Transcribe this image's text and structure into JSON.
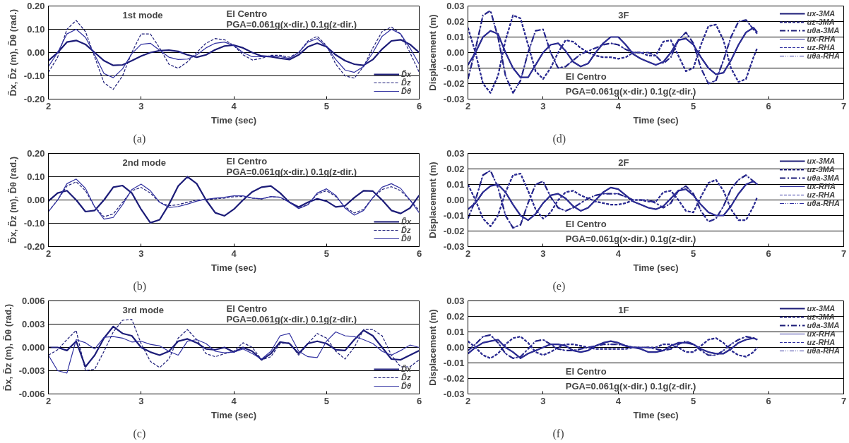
{
  "chart_data": [
    {
      "type": "line",
      "title": "1st mode",
      "xlabel": "Time (sec)",
      "ylabel": "D̃x, D̃z (m), D̃θ (rad.)",
      "grid": "y",
      "legend": "bottom right",
      "annotations": [
        "El Centro",
        "PGA=0.061g(x-dir.) 0.1g(z-dir.)",
        "(a)"
      ],
      "xlim": [
        2,
        6
      ],
      "xticks": [
        2,
        3,
        4,
        5,
        6
      ],
      "ylim": [
        -0.2,
        0.2
      ],
      "yticks": [
        {
          "value": -0.2,
          "label": "-0.20"
        },
        {
          "value": -0.1,
          "label": "-0.10"
        },
        {
          "value": 0,
          "label": "0.00"
        },
        {
          "value": 0.1,
          "label": "0.10"
        },
        {
          "value": 0.2,
          "label": "0.20"
        }
      ],
      "x": [
        2.0,
        2.1,
        2.2,
        2.3,
        2.4,
        2.5,
        2.6,
        2.7,
        2.8,
        2.9,
        3.0,
        3.1,
        3.2,
        3.3,
        3.4,
        3.5,
        3.6,
        3.7,
        3.8,
        3.9,
        4.0,
        4.1,
        4.2,
        4.3,
        4.4,
        4.5,
        4.6,
        4.7,
        4.8,
        4.9,
        5.0,
        5.1,
        5.2,
        5.3,
        5.4,
        5.5,
        5.6,
        5.7,
        5.8,
        5.9,
        6.0
      ],
      "series": [
        {
          "name": "D̃x",
          "color": "#1c1c78",
          "line_style": "solid",
          "values": [
            -0.035,
            0.0,
            0.045,
            0.052,
            0.035,
            0.0,
            -0.035,
            -0.055,
            -0.053,
            -0.035,
            -0.015,
            0.0,
            0.008,
            0.01,
            0.005,
            -0.01,
            -0.02,
            -0.01,
            0.012,
            0.028,
            0.032,
            0.02,
            0.0,
            -0.015,
            -0.018,
            -0.025,
            -0.03,
            -0.01,
            0.025,
            0.04,
            0.025,
            -0.01,
            -0.035,
            -0.05,
            -0.055,
            -0.03,
            0.015,
            0.05,
            0.055,
            0.035,
            0.0
          ]
        },
        {
          "name": "D̃z",
          "color": "#1c1c78",
          "line_style": "dashed",
          "values": [
            -0.085,
            -0.02,
            0.1,
            0.138,
            0.09,
            -0.02,
            -0.13,
            -0.158,
            -0.1,
            0.0,
            0.08,
            0.08,
            0.02,
            -0.05,
            -0.068,
            -0.04,
            0.0,
            0.04,
            0.06,
            0.055,
            0.03,
            -0.01,
            -0.032,
            -0.025,
            -0.012,
            -0.012,
            -0.02,
            0.0,
            0.05,
            0.07,
            0.03,
            -0.05,
            -0.1,
            -0.11,
            -0.06,
            0.02,
            0.09,
            0.11,
            0.08,
            0.0,
            -0.085
          ]
        },
        {
          "name": "D̃θ",
          "color": "#3030a0",
          "line_style": "solid",
          "values": [
            -0.06,
            0.0,
            0.08,
            0.1,
            0.065,
            -0.01,
            -0.09,
            -0.108,
            -0.07,
            -0.005,
            0.035,
            0.04,
            0.01,
            -0.02,
            -0.03,
            -0.028,
            -0.01,
            0.02,
            0.04,
            0.045,
            0.03,
            0.0,
            -0.018,
            -0.018,
            -0.015,
            -0.018,
            -0.025,
            0.0,
            0.045,
            0.06,
            0.025,
            -0.03,
            -0.075,
            -0.085,
            -0.06,
            0.0,
            0.07,
            0.1,
            0.08,
            0.02,
            -0.05
          ]
        }
      ]
    },
    {
      "type": "line",
      "title": "3F",
      "xlabel": "Time (sec)",
      "ylabel": "Displacement (m)",
      "grid": "y",
      "legend": "top right",
      "annotations": [
        "El Centro",
        "PGA=0.061g(x-dir.) 0.1g(z-dir.)",
        "(d)"
      ],
      "xlim": [
        2,
        7
      ],
      "xticks": [
        2,
        3,
        4,
        5,
        6,
        7
      ],
      "ylim": [
        -0.03,
        0.03
      ],
      "yticks": [
        {
          "value": -0.03,
          "label": "-0.03"
        },
        {
          "value": -0.02,
          "label": "-0.02"
        },
        {
          "value": -0.01,
          "label": "-0.01"
        },
        {
          "value": 0,
          "label": "0.00"
        },
        {
          "value": 0.01,
          "label": "0.01"
        },
        {
          "value": 0.02,
          "label": "0.02"
        },
        {
          "value": 0.03,
          "label": "0.03"
        }
      ],
      "x": [
        2.0,
        2.1,
        2.2,
        2.3,
        2.4,
        2.5,
        2.6,
        2.7,
        2.8,
        2.9,
        3.0,
        3.1,
        3.2,
        3.3,
        3.4,
        3.5,
        3.6,
        3.7,
        3.8,
        3.9,
        4.0,
        4.1,
        4.2,
        4.3,
        4.4,
        4.5,
        4.6,
        4.7,
        4.8,
        4.9,
        5.0,
        5.1,
        5.2,
        5.3,
        5.4,
        5.5,
        5.6,
        5.7,
        5.8,
        5.85
      ],
      "series": [
        {
          "name": "ux-3MA",
          "color": "#1c1c78",
          "line_style": "solid",
          "values": [
            -0.008,
            0.0,
            0.01,
            0.014,
            0.012,
            0.0,
            -0.01,
            -0.016,
            -0.016,
            -0.008,
            0.0,
            0.005,
            0.006,
            0.001,
            -0.006,
            -0.009,
            -0.007,
            0.0,
            0.006,
            0.01,
            0.01,
            0.005,
            -0.001,
            -0.004,
            -0.006,
            -0.008,
            -0.006,
            0.0,
            0.008,
            0.009,
            0.005,
            -0.003,
            -0.01,
            -0.014,
            -0.013,
            -0.005,
            0.005,
            0.013,
            0.016,
            0.013
          ]
        },
        {
          "name": "uz-3MA",
          "color": "#1c1c78",
          "line_style": "dashed",
          "values": [
            0.016,
            0.0,
            -0.02,
            -0.026,
            -0.015,
            0.008,
            0.024,
            0.022,
            0.005,
            -0.012,
            -0.017,
            -0.01,
            0.0,
            0.008,
            0.007,
            0.003,
            0.0,
            -0.002,
            -0.003,
            -0.003,
            -0.004,
            -0.003,
            0.0,
            0.0,
            -0.002,
            -0.002,
            0.007,
            0.008,
            -0.002,
            -0.012,
            -0.01,
            0.005,
            0.017,
            0.018,
            0.008,
            -0.01,
            -0.019,
            -0.017,
            -0.003,
            0.003
          ]
        },
        {
          "name": "uθa-3MA",
          "color": "#1c1c78",
          "line_style": "dashdot",
          "values": [
            -0.017,
            0.002,
            0.024,
            0.027,
            0.01,
            -0.015,
            -0.026,
            -0.018,
            0.0,
            0.014,
            0.015,
            0.0,
            -0.01,
            -0.009,
            -0.005,
            -0.001,
            0.001,
            0.003,
            0.005,
            0.006,
            0.005,
            0.002,
            0.0,
            0.0,
            0.0,
            -0.002,
            -0.007,
            -0.003,
            0.008,
            0.013,
            0.006,
            -0.01,
            -0.02,
            -0.018,
            -0.005,
            0.01,
            0.02,
            0.021,
            0.015,
            0.012
          ]
        },
        {
          "name": "ux-RHA",
          "color": "#3030a0",
          "line_style": "solid",
          "values": [
            -0.008,
            0.0,
            0.01,
            0.014,
            0.012,
            0.0,
            -0.01,
            -0.016,
            -0.016,
            -0.008,
            0.0,
            0.005,
            0.006,
            0.001,
            -0.006,
            -0.009,
            -0.007,
            0.0,
            0.006,
            0.01,
            0.01,
            0.005,
            -0.001,
            -0.004,
            -0.006,
            -0.008,
            -0.006,
            0.0,
            0.008,
            0.009,
            0.005,
            -0.003,
            -0.01,
            -0.014,
            -0.013,
            -0.005,
            0.005,
            0.013,
            0.016,
            0.013
          ]
        },
        {
          "name": "uz-RHA",
          "color": "#3030a0",
          "line_style": "dashed",
          "values": [
            0.016,
            0.0,
            -0.02,
            -0.026,
            -0.015,
            0.008,
            0.024,
            0.022,
            0.005,
            -0.012,
            -0.017,
            -0.01,
            0.0,
            0.008,
            0.007,
            0.003,
            0.0,
            -0.002,
            -0.003,
            -0.003,
            -0.004,
            -0.003,
            0.0,
            0.0,
            -0.002,
            -0.002,
            0.007,
            0.008,
            -0.002,
            -0.012,
            -0.01,
            0.005,
            0.017,
            0.018,
            0.008,
            -0.01,
            -0.019,
            -0.017,
            -0.003,
            0.003
          ]
        },
        {
          "name": "uθa-RHA",
          "color": "#3030a0",
          "line_style": "dotted",
          "values": [
            -0.017,
            0.002,
            0.024,
            0.027,
            0.01,
            -0.015,
            -0.026,
            -0.018,
            0.0,
            0.014,
            0.015,
            0.0,
            -0.01,
            -0.009,
            -0.005,
            -0.001,
            0.001,
            0.003,
            0.005,
            0.006,
            0.005,
            0.002,
            0.0,
            0.0,
            0.0,
            -0.002,
            -0.007,
            -0.003,
            0.008,
            0.013,
            0.006,
            -0.01,
            -0.02,
            -0.018,
            -0.005,
            0.01,
            0.02,
            0.021,
            0.015,
            0.012
          ]
        }
      ]
    },
    {
      "type": "line",
      "title": "2nd mode",
      "xlabel": "Time (sec)",
      "ylabel": "D̃x, D̃z (m), D̃θ (rad.)",
      "grid": "y",
      "legend": "bottom right",
      "annotations": [
        "El Centro",
        "PGA=0.061g(x-dir.) 0.1g(z-dir.)",
        "(b)"
      ],
      "xlim": [
        2,
        6
      ],
      "xticks": [
        2,
        3,
        4,
        5,
        6
      ],
      "ylim": [
        -0.2,
        0.2
      ],
      "yticks": [
        {
          "value": -0.2,
          "label": "-0.20"
        },
        {
          "value": -0.1,
          "label": "-0.10"
        },
        {
          "value": 0,
          "label": "0.00"
        },
        {
          "value": 0.1,
          "label": "0.10"
        },
        {
          "value": 0.2,
          "label": "0.20"
        }
      ],
      "x": [
        2.0,
        2.1,
        2.2,
        2.3,
        2.4,
        2.5,
        2.6,
        2.7,
        2.8,
        2.9,
        3.0,
        3.1,
        3.2,
        3.3,
        3.4,
        3.5,
        3.6,
        3.7,
        3.8,
        3.9,
        4.0,
        4.1,
        4.2,
        4.3,
        4.4,
        4.5,
        4.6,
        4.7,
        4.8,
        4.9,
        5.0,
        5.1,
        5.2,
        5.3,
        5.4,
        5.5,
        5.6,
        5.7,
        5.8,
        5.9,
        6.0
      ],
      "series": [
        {
          "name": "D̃x",
          "color": "#1c1c78",
          "line_style": "solid",
          "values": [
            -0.005,
            0.03,
            0.04,
            0.0,
            -0.05,
            -0.045,
            0.0,
            0.055,
            0.062,
            0.03,
            -0.04,
            -0.098,
            -0.085,
            -0.02,
            0.06,
            0.1,
            0.07,
            0.0,
            -0.055,
            -0.068,
            -0.04,
            0.0,
            0.035,
            0.055,
            0.06,
            0.03,
            -0.01,
            -0.03,
            -0.01,
            0.005,
            -0.005,
            -0.03,
            -0.025,
            0.01,
            0.04,
            0.038,
            0.0,
            -0.045,
            -0.058,
            -0.035,
            0.02
          ]
        },
        {
          "name": "D̃z",
          "color": "#1c1c78",
          "line_style": "dashed",
          "values": [
            -0.05,
            0.0,
            0.06,
            0.078,
            0.04,
            -0.03,
            -0.072,
            -0.06,
            -0.01,
            0.04,
            0.054,
            0.03,
            -0.01,
            -0.025,
            -0.02,
            -0.01,
            0.0,
            0.002,
            0.005,
            0.008,
            0.014,
            0.015,
            0.008,
            0.005,
            0.014,
            0.012,
            -0.01,
            -0.035,
            -0.02,
            0.025,
            0.04,
            0.015,
            -0.03,
            -0.056,
            -0.04,
            0.01,
            0.045,
            0.057,
            0.04,
            0.0,
            -0.045
          ]
        },
        {
          "name": "D̃θ",
          "color": "#3030a0",
          "line_style": "solid",
          "values": [
            -0.05,
            0.0,
            0.07,
            0.09,
            0.05,
            -0.03,
            -0.082,
            -0.075,
            -0.02,
            0.045,
            0.068,
            0.04,
            -0.01,
            -0.032,
            -0.028,
            -0.018,
            -0.005,
            0.003,
            0.008,
            0.012,
            0.018,
            0.018,
            0.008,
            0.005,
            0.015,
            0.012,
            -0.01,
            -0.037,
            -0.02,
            0.03,
            0.048,
            0.02,
            -0.035,
            -0.065,
            -0.045,
            0.01,
            0.055,
            0.07,
            0.05,
            0.0,
            -0.055
          ]
        }
      ]
    },
    {
      "type": "line",
      "title": "2F",
      "xlabel": "Time (sec)",
      "ylabel": "Displacement (m)",
      "grid": "y",
      "legend": "top right",
      "annotations": [
        "El Centro",
        "PGA=0.061g(x-dir.) 0.1g(z-dir.)",
        "(e)"
      ],
      "xlim": [
        2,
        7
      ],
      "xticks": [
        2,
        3,
        4,
        5,
        6,
        7
      ],
      "ylim": [
        -0.03,
        0.03
      ],
      "yticks": [
        {
          "value": -0.03,
          "label": "-0.03"
        },
        {
          "value": -0.02,
          "label": "-0.02"
        },
        {
          "value": -0.01,
          "label": "-0.01"
        },
        {
          "value": 0,
          "label": "0.00"
        },
        {
          "value": 0.01,
          "label": "0.01"
        },
        {
          "value": 0.02,
          "label": "0.02"
        },
        {
          "value": 0.03,
          "label": "0.03"
        }
      ],
      "x": [
        2.0,
        2.1,
        2.2,
        2.3,
        2.4,
        2.5,
        2.6,
        2.7,
        2.8,
        2.9,
        3.0,
        3.1,
        3.2,
        3.3,
        3.4,
        3.5,
        3.6,
        3.7,
        3.8,
        3.9,
        4.0,
        4.1,
        4.2,
        4.3,
        4.4,
        4.5,
        4.6,
        4.7,
        4.8,
        4.9,
        5.0,
        5.1,
        5.2,
        5.3,
        5.4,
        5.5,
        5.6,
        5.7,
        5.8,
        5.85
      ],
      "series": [
        {
          "name": "ux-3MA",
          "color": "#1c1c78",
          "line_style": "solid",
          "values": [
            -0.006,
            -0.002,
            0.005,
            0.009,
            0.01,
            0.005,
            -0.003,
            -0.01,
            -0.013,
            -0.009,
            -0.002,
            0.003,
            0.004,
            0.001,
            -0.004,
            -0.007,
            -0.005,
            0.0,
            0.005,
            0.008,
            0.007,
            0.003,
            -0.001,
            -0.003,
            -0.005,
            -0.006,
            -0.004,
            0.001,
            0.006,
            0.007,
            0.003,
            -0.003,
            -0.008,
            -0.01,
            -0.01,
            -0.004,
            0.004,
            0.01,
            0.012,
            0.01
          ]
        },
        {
          "name": "uz-3MA",
          "color": "#1c1c78",
          "line_style": "dashed",
          "values": [
            0.01,
            0.0,
            -0.012,
            -0.017,
            -0.01,
            0.005,
            0.016,
            0.017,
            0.006,
            -0.006,
            -0.012,
            -0.008,
            0.0,
            0.005,
            0.006,
            0.003,
            0.001,
            -0.001,
            -0.002,
            -0.003,
            -0.003,
            -0.002,
            0.0,
            0.0,
            -0.001,
            -0.001,
            0.005,
            0.006,
            0.0,
            -0.007,
            -0.008,
            0.002,
            0.011,
            0.013,
            0.006,
            -0.006,
            -0.013,
            -0.013,
            -0.004,
            0.002
          ]
        },
        {
          "name": "uθa-3MA",
          "color": "#1c1c78",
          "line_style": "dashdot",
          "values": [
            -0.012,
            0.0,
            0.016,
            0.019,
            0.008,
            -0.01,
            -0.018,
            -0.016,
            -0.002,
            0.01,
            0.012,
            0.002,
            -0.005,
            -0.007,
            -0.005,
            -0.002,
            0.001,
            0.003,
            0.004,
            0.004,
            0.004,
            0.002,
            0.0,
            0.0,
            0.0,
            -0.002,
            -0.005,
            -0.002,
            0.006,
            0.009,
            0.004,
            -0.007,
            -0.014,
            -0.012,
            -0.004,
            0.007,
            0.013,
            0.016,
            0.012,
            0.01
          ]
        },
        {
          "name": "ux-RHA",
          "color": "#3030a0",
          "line_style": "solid",
          "values": [
            -0.006,
            -0.002,
            0.005,
            0.009,
            0.01,
            0.005,
            -0.003,
            -0.01,
            -0.013,
            -0.009,
            -0.002,
            0.003,
            0.004,
            0.001,
            -0.004,
            -0.007,
            -0.005,
            0.0,
            0.005,
            0.008,
            0.007,
            0.003,
            -0.001,
            -0.003,
            -0.005,
            -0.006,
            -0.004,
            0.001,
            0.006,
            0.007,
            0.003,
            -0.003,
            -0.008,
            -0.01,
            -0.01,
            -0.004,
            0.004,
            0.01,
            0.012,
            0.01
          ]
        },
        {
          "name": "uz-RHA",
          "color": "#3030a0",
          "line_style": "dashed",
          "values": [
            0.01,
            0.0,
            -0.012,
            -0.017,
            -0.01,
            0.005,
            0.016,
            0.017,
            0.006,
            -0.006,
            -0.012,
            -0.008,
            0.0,
            0.005,
            0.006,
            0.003,
            0.001,
            -0.001,
            -0.002,
            -0.003,
            -0.003,
            -0.002,
            0.0,
            0.0,
            -0.001,
            -0.001,
            0.005,
            0.006,
            0.0,
            -0.007,
            -0.008,
            0.002,
            0.011,
            0.013,
            0.006,
            -0.006,
            -0.013,
            -0.013,
            -0.004,
            0.002
          ]
        },
        {
          "name": "uθa-RHA",
          "color": "#3030a0",
          "line_style": "dotted",
          "values": [
            -0.012,
            0.0,
            0.016,
            0.019,
            0.008,
            -0.01,
            -0.018,
            -0.016,
            -0.002,
            0.01,
            0.012,
            0.002,
            -0.005,
            -0.007,
            -0.005,
            -0.002,
            0.001,
            0.003,
            0.004,
            0.004,
            0.004,
            0.002,
            0.0,
            0.0,
            0.0,
            -0.002,
            -0.005,
            -0.002,
            0.006,
            0.009,
            0.004,
            -0.007,
            -0.014,
            -0.012,
            -0.004,
            0.007,
            0.013,
            0.016,
            0.012,
            0.01
          ]
        }
      ]
    },
    {
      "type": "line",
      "title": "3rd mode",
      "xlabel": "Time (sec)",
      "ylabel": "D̃x, D̃z (m), D̃θ (rad.)",
      "grid": "y",
      "legend": "bottom right",
      "annotations": [
        "El Centro",
        "PGA=0.061g(x-dir.) 0.1g(z-dir.)",
        "(c)"
      ],
      "xlim": [
        2,
        6
      ],
      "xticks": [
        2,
        3,
        4,
        5,
        6
      ],
      "ylim": [
        -0.006,
        0.006
      ],
      "yticks": [
        {
          "value": -0.006,
          "label": "-0.006"
        },
        {
          "value": -0.003,
          "label": "-0.003"
        },
        {
          "value": 0,
          "label": "0.000"
        },
        {
          "value": 0.003,
          "label": "0.003"
        },
        {
          "value": 0.006,
          "label": "0.006"
        }
      ],
      "x": [
        2.0,
        2.1,
        2.2,
        2.3,
        2.4,
        2.5,
        2.6,
        2.7,
        2.8,
        2.9,
        3.0,
        3.1,
        3.2,
        3.3,
        3.4,
        3.5,
        3.6,
        3.7,
        3.8,
        3.9,
        4.0,
        4.1,
        4.2,
        4.3,
        4.4,
        4.5,
        4.6,
        4.7,
        4.8,
        4.9,
        5.0,
        5.1,
        5.2,
        5.3,
        5.4,
        5.5,
        5.6,
        5.7,
        5.8,
        5.9,
        6.0
      ],
      "series": [
        {
          "name": "D̃x",
          "color": "#1c1c78",
          "line_style": "solid",
          "values": [
            0.0,
            0.0,
            -0.0004,
            0.0008,
            -0.0025,
            -0.001,
            0.0012,
            0.0027,
            0.0018,
            0.0015,
            0.0,
            -0.0006,
            -0.001,
            -0.0005,
            0.0008,
            0.0011,
            0.0006,
            -0.0002,
            -0.0003,
            0.0,
            -0.0006,
            0.0,
            -0.0005,
            -0.0016,
            -0.0008,
            0.0007,
            0.0005,
            -0.0008,
            0.0005,
            0.0008,
            0.0005,
            -0.0003,
            -0.0004,
            0.001,
            0.0022,
            0.0015,
            0.0,
            -0.0015,
            -0.0016,
            -0.001,
            -0.0004
          ]
        },
        {
          "name": "D̃z",
          "color": "#1c1c78",
          "line_style": "dashed",
          "values": [
            -0.001,
            -0.0003,
            0.001,
            0.0022,
            -0.003,
            -0.0028,
            -0.0005,
            0.002,
            0.0035,
            0.0036,
            0.0005,
            -0.0018,
            -0.0026,
            -0.0015,
            0.0012,
            0.0023,
            0.001,
            -0.0008,
            -0.0012,
            -0.0008,
            -0.0005,
            0.0006,
            0.0,
            -0.0016,
            -0.0012,
            0.0005,
            0.0006,
            -0.001,
            0.0005,
            0.0018,
            0.0012,
            -0.0005,
            -0.0015,
            0.0,
            0.0023,
            0.0023,
            0.0015,
            -0.001,
            -0.0025,
            -0.0025,
            -0.0016
          ]
        },
        {
          "name": "D̃θ",
          "color": "#3030a0",
          "line_style": "solid",
          "values": [
            -0.001,
            -0.003,
            -0.0033,
            0.001,
            0.0006,
            -0.0002,
            0.0013,
            0.0014,
            0.0012,
            0.0007,
            0.0008,
            0.0004,
            0.0002,
            -0.0005,
            -0.001,
            0.0008,
            0.001,
            0.0005,
            -0.0005,
            -0.0007,
            -0.0006,
            -0.0002,
            -0.0008,
            -0.0015,
            -0.0005,
            0.0015,
            0.0018,
            -0.0005,
            -0.0012,
            -0.0013,
            0.0008,
            0.002,
            0.0015,
            0.0014,
            0.001,
            0.0005,
            -0.0005,
            -0.001,
            -0.0004,
            0.0003,
            0.0
          ]
        }
      ]
    },
    {
      "type": "line",
      "title": "1F",
      "xlabel": "Time (sec)",
      "ylabel": "Displacement (m)",
      "grid": "y",
      "legend": "top right",
      "annotations": [
        "El Centro",
        "PGA=0.061g(x-dir.) 0.1g(z-dir.)",
        "(f)"
      ],
      "xlim": [
        2,
        7
      ],
      "xticks": [
        2,
        3,
        4,
        5,
        6,
        7
      ],
      "ylim": [
        -0.03,
        0.03
      ],
      "yticks": [
        {
          "value": -0.03,
          "label": "-0.03"
        },
        {
          "value": -0.02,
          "label": "-0.02"
        },
        {
          "value": -0.01,
          "label": "-0.01"
        },
        {
          "value": 0,
          "label": "0.00"
        },
        {
          "value": 0.01,
          "label": "0.01"
        },
        {
          "value": 0.02,
          "label": "0.02"
        },
        {
          "value": 0.03,
          "label": "0.03"
        }
      ],
      "x": [
        2.0,
        2.1,
        2.2,
        2.3,
        2.4,
        2.5,
        2.6,
        2.7,
        2.8,
        2.9,
        3.0,
        3.1,
        3.2,
        3.3,
        3.4,
        3.5,
        3.6,
        3.7,
        3.8,
        3.9,
        4.0,
        4.1,
        4.2,
        4.3,
        4.4,
        4.5,
        4.6,
        4.7,
        4.8,
        4.9,
        5.0,
        5.1,
        5.2,
        5.3,
        5.4,
        5.5,
        5.6,
        5.7,
        5.8,
        5.85
      ],
      "series": [
        {
          "name": "ux-3MA",
          "color": "#1c1c78",
          "line_style": "solid",
          "values": [
            -0.004,
            0.0,
            0.003,
            0.004,
            0.005,
            0.0,
            -0.003,
            -0.007,
            -0.004,
            -0.002,
            0.0,
            0.002,
            0.002,
            0.001,
            -0.002,
            -0.003,
            -0.002,
            0.001,
            0.003,
            0.004,
            0.003,
            0.001,
            0.0,
            -0.001,
            -0.003,
            -0.003,
            -0.002,
            0.001,
            0.003,
            0.003,
            0.002,
            -0.001,
            -0.003,
            -0.004,
            -0.004,
            -0.001,
            0.003,
            0.005,
            0.006,
            0.005
          ]
        },
        {
          "name": "uz-3MA",
          "color": "#1c1c78",
          "line_style": "dashed",
          "values": [
            0.004,
            0.0,
            -0.005,
            -0.007,
            -0.004,
            0.002,
            0.006,
            0.007,
            0.003,
            -0.003,
            -0.005,
            -0.003,
            0.0,
            0.002,
            0.002,
            0.001,
            0.0,
            -0.001,
            -0.001,
            -0.001,
            -0.001,
            -0.001,
            0.0,
            0.0,
            0.0,
            0.0,
            0.002,
            0.002,
            0.0,
            -0.003,
            -0.003,
            0.001,
            0.005,
            0.006,
            0.003,
            -0.002,
            -0.005,
            -0.006,
            -0.003,
            0.0
          ]
        },
        {
          "name": "uθa-3MA",
          "color": "#1c1c78",
          "line_style": "dashdot",
          "values": [
            -0.002,
            0.002,
            0.007,
            0.008,
            0.003,
            -0.004,
            -0.007,
            -0.006,
            -0.001,
            0.004,
            0.005,
            0.002,
            -0.001,
            -0.002,
            -0.002,
            -0.001,
            0.0,
            0.001,
            0.002,
            0.002,
            0.002,
            0.001,
            0.0,
            0.0,
            0.0,
            -0.001,
            -0.002,
            -0.001,
            0.002,
            0.004,
            0.002,
            -0.002,
            -0.005,
            -0.005,
            -0.002,
            0.002,
            0.005,
            0.007,
            0.006,
            0.005
          ]
        },
        {
          "name": "ux-RHA",
          "color": "#3030a0",
          "line_style": "solid",
          "values": [
            -0.004,
            0.0,
            0.003,
            0.004,
            0.005,
            0.0,
            -0.003,
            -0.007,
            -0.004,
            -0.002,
            0.0,
            0.002,
            0.002,
            0.001,
            -0.002,
            -0.003,
            -0.002,
            0.001,
            0.003,
            0.004,
            0.003,
            0.001,
            0.0,
            -0.001,
            -0.003,
            -0.003,
            -0.002,
            0.001,
            0.003,
            0.003,
            0.002,
            -0.001,
            -0.003,
            -0.004,
            -0.004,
            -0.001,
            0.003,
            0.005,
            0.006,
            0.005
          ]
        },
        {
          "name": "uz-RHA",
          "color": "#3030a0",
          "line_style": "dashed",
          "values": [
            0.004,
            0.0,
            -0.005,
            -0.007,
            -0.004,
            0.002,
            0.006,
            0.007,
            0.003,
            -0.003,
            -0.005,
            -0.003,
            0.0,
            0.002,
            0.002,
            0.001,
            0.0,
            -0.001,
            -0.001,
            -0.001,
            -0.001,
            -0.001,
            0.0,
            0.0,
            0.0,
            0.0,
            0.002,
            0.002,
            0.0,
            -0.003,
            -0.003,
            0.001,
            0.005,
            0.006,
            0.003,
            -0.002,
            -0.005,
            -0.006,
            -0.003,
            0.0
          ]
        },
        {
          "name": "uθa-RHA",
          "color": "#3030a0",
          "line_style": "dotted",
          "values": [
            -0.002,
            0.002,
            0.007,
            0.008,
            0.003,
            -0.004,
            -0.007,
            -0.006,
            -0.001,
            0.004,
            0.005,
            0.002,
            -0.001,
            -0.002,
            -0.002,
            -0.001,
            0.0,
            0.001,
            0.002,
            0.002,
            0.002,
            0.001,
            0.0,
            0.0,
            0.0,
            -0.001,
            -0.002,
            -0.001,
            0.002,
            0.004,
            0.002,
            -0.002,
            -0.005,
            -0.005,
            -0.002,
            0.002,
            0.005,
            0.007,
            0.006,
            0.005
          ]
        }
      ]
    }
  ]
}
